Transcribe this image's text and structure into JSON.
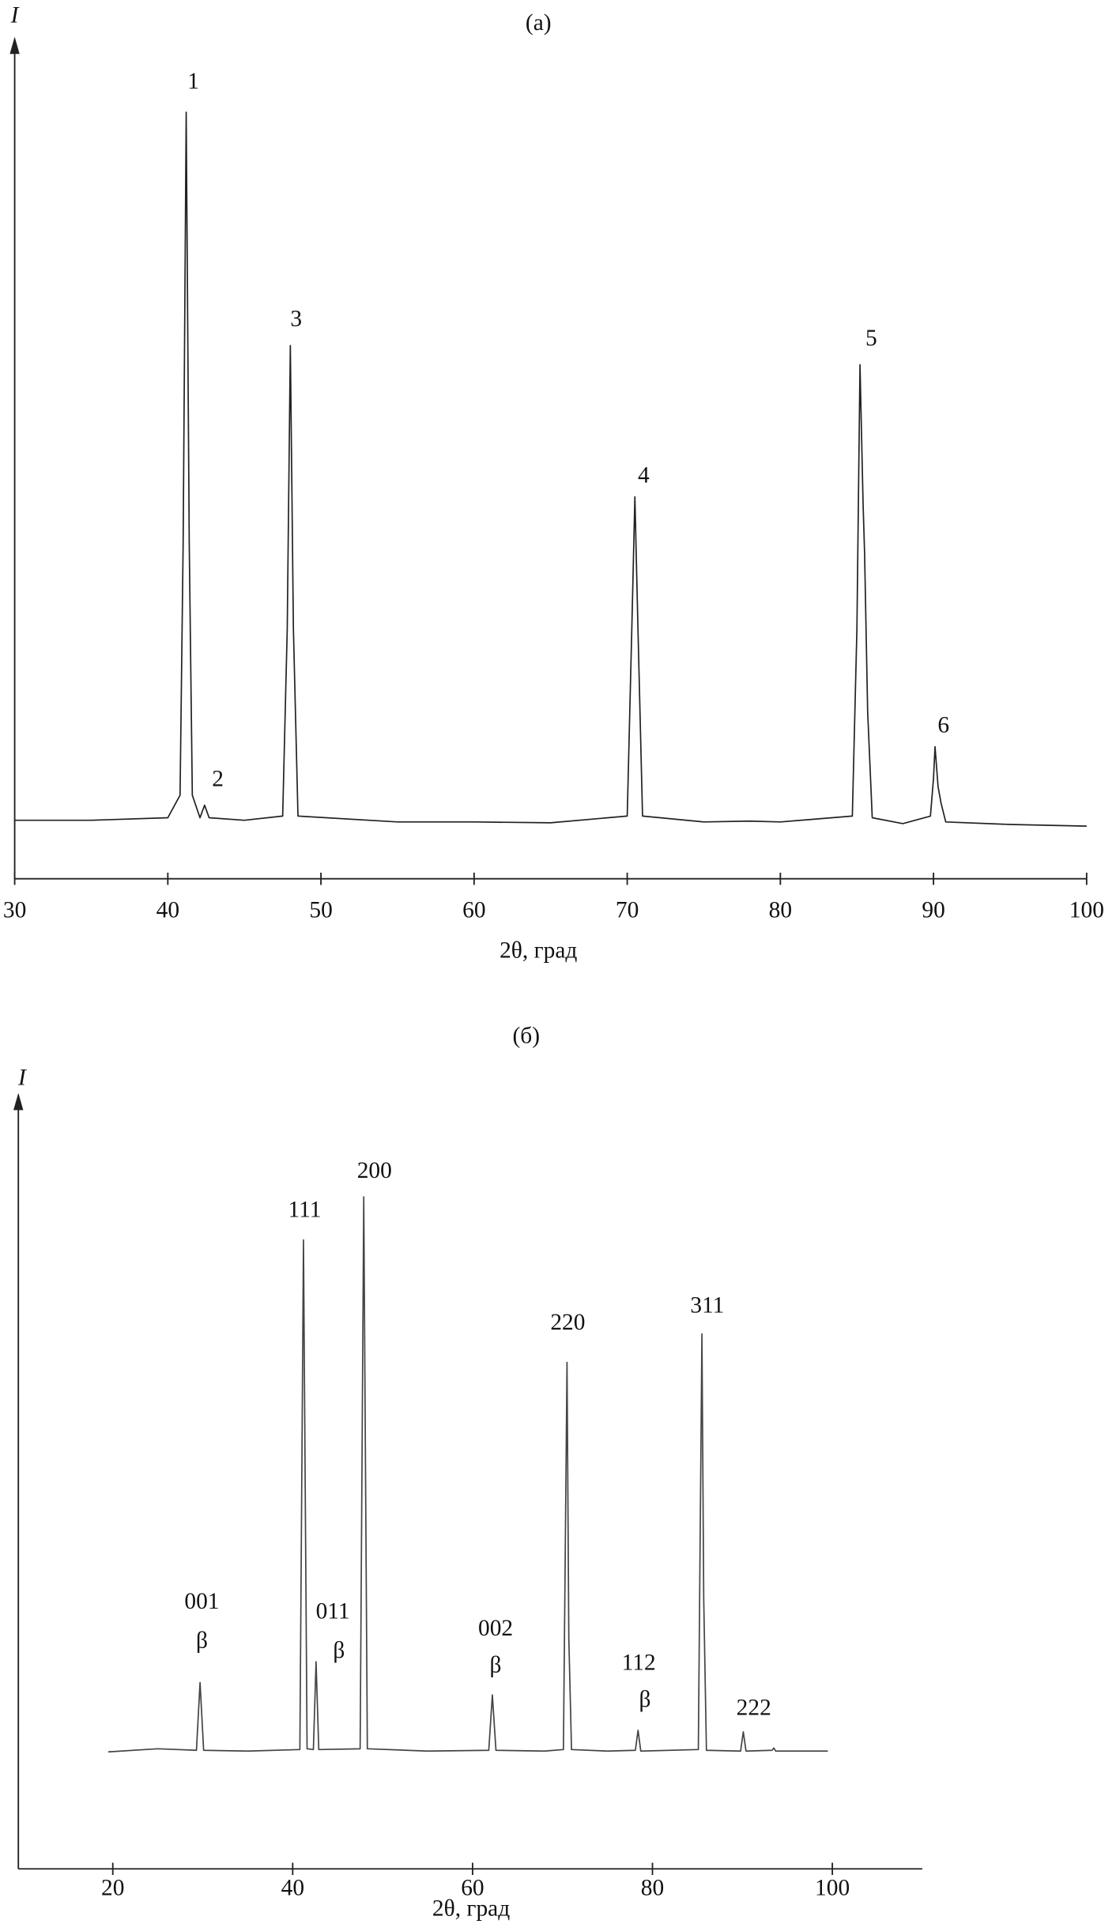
{
  "chart_data": [
    {
      "type": "line",
      "title": "(а)",
      "y_label": "I",
      "x_label": "2θ, град",
      "xlim": [
        30,
        100
      ],
      "xticks": [
        30,
        40,
        50,
        60,
        70,
        80,
        90,
        100
      ],
      "ylim": [
        0,
        100
      ],
      "color": "#222222",
      "x": [
        30,
        35,
        40,
        40.8,
        41.0,
        41.2,
        41.4,
        41.6,
        42.1,
        42.4,
        42.7,
        45,
        47.5,
        47.8,
        48.0,
        48.2,
        48.5,
        55,
        60,
        65,
        70.0,
        70.3,
        70.5,
        70.7,
        71.0,
        75,
        78,
        80,
        84.7,
        85.0,
        85.2,
        85.4,
        85.5,
        85.7,
        86.0,
        88,
        89.8,
        90.0,
        90.1,
        90.3,
        90.5,
        90.8,
        95,
        100
      ],
      "values": [
        7.0,
        7.0,
        7.3,
        10,
        40,
        91.7,
        40,
        10,
        7.3,
        8.8,
        7.3,
        7.0,
        7.5,
        30,
        63.8,
        30,
        7.5,
        6.8,
        6.8,
        6.7,
        7.5,
        30,
        45.7,
        30,
        7.5,
        6.8,
        6.9,
        6.8,
        7.5,
        30,
        61.5,
        45,
        39,
        20,
        7.3,
        6.6,
        7.5,
        12,
        15.8,
        11,
        9,
        6.8,
        6.5,
        6.3
      ],
      "annotations": [
        "1",
        "2",
        "3",
        "4",
        "5",
        "6"
      ]
    },
    {
      "type": "line",
      "title": "(б)",
      "y_label": "I",
      "x_label": "2θ, град",
      "xlim": [
        9.5,
        110
      ],
      "xticks": [
        20,
        40,
        60,
        80,
        100
      ],
      "ylim": [
        0,
        100
      ],
      "color": "#444444",
      "x": [
        19.5,
        25,
        29.3,
        29.7,
        30.1,
        35,
        40.8,
        41.2,
        41.6,
        42.3,
        42.6,
        42.9,
        47.5,
        47.9,
        48.3,
        55,
        61.8,
        62.2,
        62.6,
        68,
        70.1,
        70.5,
        70.7,
        71.0,
        75,
        78.1,
        78.4,
        78.7,
        85.1,
        85.5,
        85.7,
        86.0,
        89.8,
        90.1,
        90.4,
        93.3,
        93.5,
        93.7,
        99.5
      ],
      "values": [
        15.2,
        15.6,
        15.4,
        24.2,
        15.4,
        15.3,
        15.5,
        81.7,
        15.6,
        15.5,
        26.9,
        15.5,
        15.6,
        87.3,
        15.6,
        15.3,
        15.4,
        22.6,
        15.4,
        15.3,
        15.5,
        65.8,
        30,
        15.5,
        15.3,
        15.4,
        18.0,
        15.3,
        15.5,
        69.5,
        35,
        15.4,
        15.3,
        17.8,
        15.3,
        15.4,
        15.7,
        15.3,
        15.3
      ],
      "annotations": [
        "111",
        "200",
        "220",
        "311",
        "001",
        "β",
        "011",
        "β",
        "002",
        "β",
        "112",
        "β",
        "222"
      ]
    }
  ]
}
